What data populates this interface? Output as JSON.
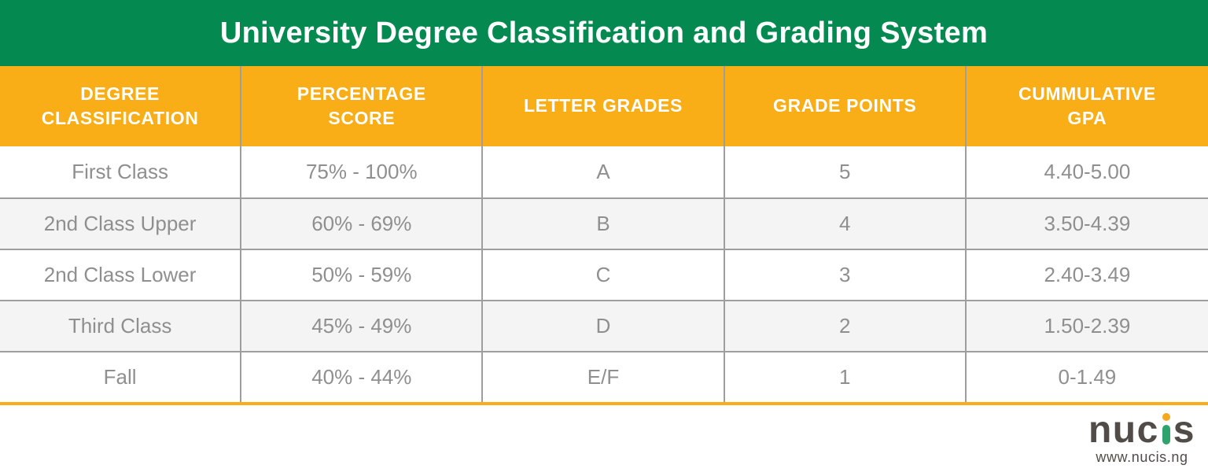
{
  "chart_data": {
    "type": "table",
    "title": "University Degree Classification and Grading System",
    "columns": [
      "DEGREE CLASSIFICATION",
      "PERCENTAGE SCORE",
      "LETTER GRADES",
      "GRADE POINTS",
      "CUMMULATIVE GPA"
    ],
    "rows": [
      [
        "First Class",
        "75% - 100%",
        "A",
        "5",
        "4.40-5.00"
      ],
      [
        "2nd Class Upper",
        "60% - 69%",
        "B",
        "4",
        "3.50-4.39"
      ],
      [
        "2nd Class Lower",
        "50% - 59%",
        "C",
        "3",
        "2.40-3.49"
      ],
      [
        "Third Class",
        "45% - 49%",
        "D",
        "2",
        "1.50-2.39"
      ],
      [
        "Fall",
        "40% - 44%",
        "E/F",
        "1",
        "0-1.49"
      ]
    ],
    "layout": {
      "title_bar_color": "#048a51",
      "header_row_color": "#f9ad17",
      "alt_row_color": "#f4f4f4",
      "grid_line_color": "#9e9e9e",
      "cell_text_color": "#8f8f8f",
      "header_text_color": "#ffffff",
      "bottom_rule_color": "#f9ad17",
      "grid": "on"
    }
  },
  "footer": {
    "logo_text_left": "nuc",
    "logo_text_right": "s",
    "logo_dot_color": "#f6a81c",
    "logo_stem_color": "#2fa36e",
    "logo_text_color": "#514c47",
    "website": "www.nucis.ng"
  }
}
